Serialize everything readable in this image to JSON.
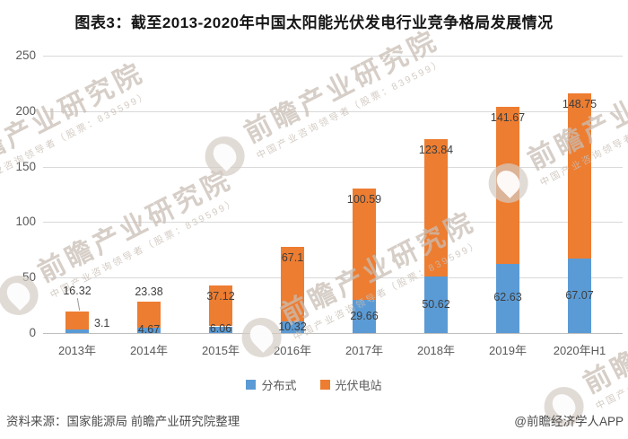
{
  "title": "图表3：截至2013-2020年中国太阳能光伏发电行业竞争格局发展情况",
  "chart_data": {
    "type": "bar",
    "stacked": true,
    "title": "图表3：截至2013-2020年中国太阳能光伏发电行业竞争格局发展情况",
    "categories": [
      "2013年",
      "2014年",
      "2015年",
      "2016年",
      "2017年",
      "2018年",
      "2019年",
      "2020年H1"
    ],
    "series": [
      {
        "name": "分布式",
        "color": "#5B9BD5",
        "values": [
          3.1,
          4.67,
          6.06,
          10.32,
          29.66,
          50.62,
          62.63,
          67.07
        ],
        "labels": [
          "3.1",
          "4.67",
          "6.06",
          "10.32",
          "29.66",
          "50.62",
          "62.63",
          "67.07"
        ]
      },
      {
        "name": "光伏电站",
        "color": "#ED7D31",
        "values": [
          16.32,
          23.38,
          37.12,
          67.1,
          100.59,
          123.84,
          141.67,
          148.75
        ],
        "labels": [
          "16.32",
          "23.38",
          "37.12",
          "67.1",
          "100.59",
          "123.84",
          "141.67",
          "148.75"
        ]
      }
    ],
    "xlabel": "",
    "ylabel": "",
    "ylim": [
      0,
      250
    ],
    "yticks": [
      0,
      50,
      100,
      150,
      200,
      250
    ],
    "grid": true,
    "legend_position": "bottom",
    "label_color": "#3d3d3d",
    "gridline_color": "#D9D9D9"
  },
  "watermark": {
    "main": "前瞻产业研究院",
    "sub": "中国产业咨询领导者（股票：839599）"
  },
  "footer": {
    "source": "资料来源：国家能源局 前瞻产业研究院整理",
    "credit": "@前瞻经济学人APP"
  }
}
